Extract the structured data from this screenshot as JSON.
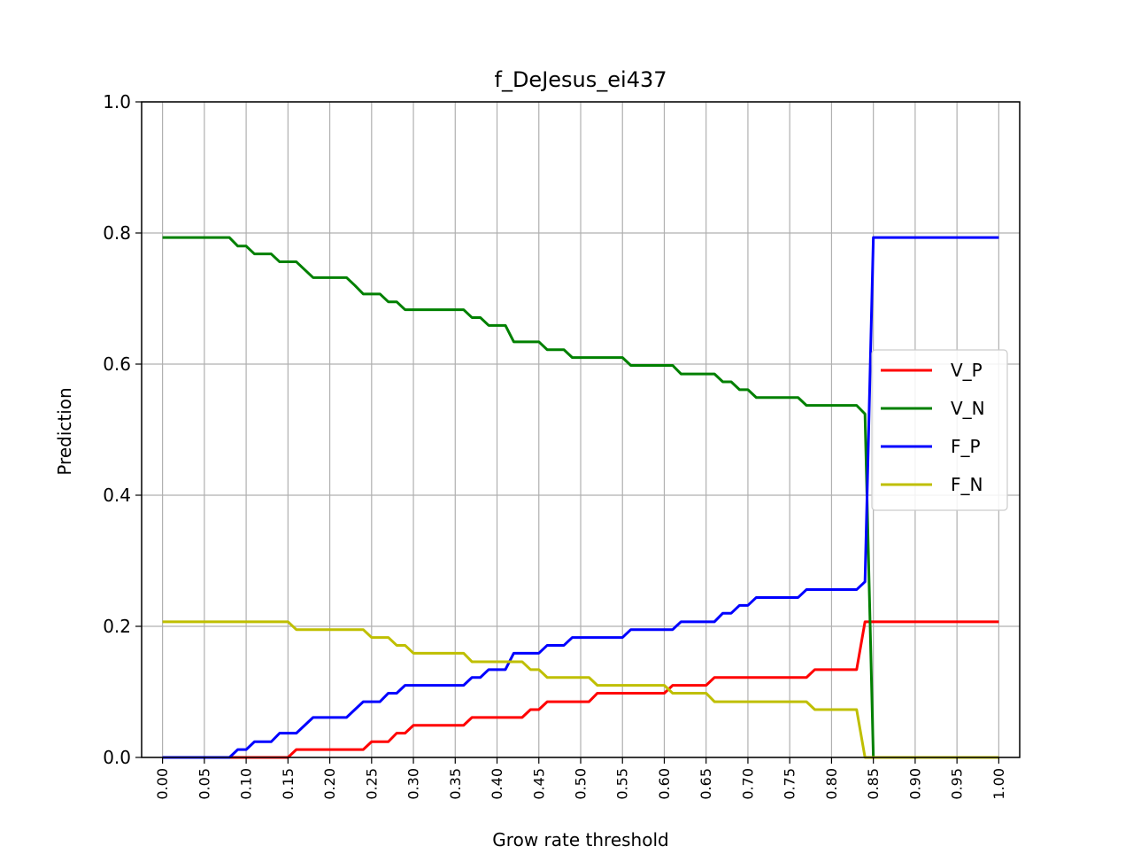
{
  "chart_data": {
    "type": "line",
    "title": "f_DeJesus_ei437",
    "xlabel": "Grow rate threshold",
    "ylabel": "Prediction",
    "xlim": [
      -0.025,
      1.025
    ],
    "ylim": [
      0.0,
      1.0
    ],
    "grid": true,
    "legend_position": "center-right",
    "x_ticks": [
      "0.00",
      "0.05",
      "0.10",
      "0.15",
      "0.20",
      "0.25",
      "0.30",
      "0.35",
      "0.40",
      "0.45",
      "0.50",
      "0.55",
      "0.60",
      "0.65",
      "0.70",
      "0.75",
      "0.80",
      "0.85",
      "0.90",
      "0.95",
      "1.00"
    ],
    "y_ticks": [
      "0.0",
      "0.2",
      "0.4",
      "0.6",
      "0.8",
      "1.0"
    ],
    "x": [
      0.0,
      0.01,
      0.02,
      0.03,
      0.04,
      0.05,
      0.06,
      0.07,
      0.08,
      0.09,
      0.1,
      0.11,
      0.12,
      0.13,
      0.14,
      0.15,
      0.16,
      0.17,
      0.18,
      0.19,
      0.2,
      0.21,
      0.22,
      0.23,
      0.24,
      0.25,
      0.26,
      0.27,
      0.28,
      0.29,
      0.3,
      0.31,
      0.32,
      0.33,
      0.34,
      0.35,
      0.36,
      0.37,
      0.38,
      0.39,
      0.4,
      0.41,
      0.42,
      0.43,
      0.44,
      0.45,
      0.46,
      0.47,
      0.48,
      0.49,
      0.5,
      0.51,
      0.52,
      0.53,
      0.54,
      0.55,
      0.56,
      0.57,
      0.58,
      0.59,
      0.6,
      0.61,
      0.62,
      0.63,
      0.64,
      0.65,
      0.66,
      0.67,
      0.68,
      0.69,
      0.7,
      0.71,
      0.72,
      0.73,
      0.74,
      0.75,
      0.76,
      0.77,
      0.78,
      0.79,
      0.8,
      0.81,
      0.82,
      0.83,
      0.84,
      0.85,
      0.86,
      0.87,
      0.88,
      0.89,
      0.9,
      0.91,
      0.92,
      0.93,
      0.94,
      0.95,
      0.96,
      0.97,
      0.98,
      0.99,
      1.0
    ],
    "series": [
      {
        "name": "V_P",
        "color": "#ff0000",
        "values": [
          0,
          0,
          0,
          0,
          0,
          0,
          0,
          0,
          0,
          0,
          0,
          0,
          0,
          0,
          0,
          0,
          0.012,
          0.012,
          0.012,
          0.012,
          0.012,
          0.012,
          0.012,
          0.012,
          0.012,
          0.024,
          0.024,
          0.024,
          0.037,
          0.037,
          0.049,
          0.049,
          0.049,
          0.049,
          0.049,
          0.049,
          0.049,
          0.061,
          0.061,
          0.061,
          0.061,
          0.061,
          0.061,
          0.061,
          0.073,
          0.073,
          0.085,
          0.085,
          0.085,
          0.085,
          0.085,
          0.085,
          0.098,
          0.098,
          0.098,
          0.098,
          0.098,
          0.098,
          0.098,
          0.098,
          0.098,
          0.11,
          0.11,
          0.11,
          0.11,
          0.11,
          0.122,
          0.122,
          0.122,
          0.122,
          0.122,
          0.122,
          0.122,
          0.122,
          0.122,
          0.122,
          0.122,
          0.122,
          0.134,
          0.134,
          0.134,
          0.134,
          0.134,
          0.134,
          0.207,
          0.207,
          0.207,
          0.207,
          0.207,
          0.207,
          0.207,
          0.207,
          0.207,
          0.207,
          0.207,
          0.207,
          0.207,
          0.207,
          0.207,
          0.207,
          0.207
        ]
      },
      {
        "name": "V_N",
        "color": "#008000",
        "values": [
          0.793,
          0.793,
          0.793,
          0.793,
          0.793,
          0.793,
          0.793,
          0.793,
          0.793,
          0.78,
          0.78,
          0.768,
          0.768,
          0.768,
          0.756,
          0.756,
          0.756,
          0.744,
          0.732,
          0.732,
          0.732,
          0.732,
          0.732,
          0.72,
          0.707,
          0.707,
          0.707,
          0.695,
          0.695,
          0.683,
          0.683,
          0.683,
          0.683,
          0.683,
          0.683,
          0.683,
          0.683,
          0.671,
          0.671,
          0.659,
          0.659,
          0.659,
          0.634,
          0.634,
          0.634,
          0.634,
          0.622,
          0.622,
          0.622,
          0.61,
          0.61,
          0.61,
          0.61,
          0.61,
          0.61,
          0.61,
          0.598,
          0.598,
          0.598,
          0.598,
          0.598,
          0.598,
          0.585,
          0.585,
          0.585,
          0.585,
          0.585,
          0.573,
          0.573,
          0.561,
          0.561,
          0.549,
          0.549,
          0.549,
          0.549,
          0.549,
          0.549,
          0.537,
          0.537,
          0.537,
          0.537,
          0.537,
          0.537,
          0.537,
          0.524,
          0,
          0,
          0,
          0,
          0,
          0,
          0,
          0,
          0,
          0,
          0,
          0,
          0,
          0,
          0,
          0
        ]
      },
      {
        "name": "F_P",
        "color": "#0000ff",
        "values": [
          0,
          0,
          0,
          0,
          0,
          0,
          0,
          0,
          0,
          0.012,
          0.012,
          0.024,
          0.024,
          0.024,
          0.037,
          0.037,
          0.037,
          0.049,
          0.061,
          0.061,
          0.061,
          0.061,
          0.061,
          0.073,
          0.085,
          0.085,
          0.085,
          0.098,
          0.098,
          0.11,
          0.11,
          0.11,
          0.11,
          0.11,
          0.11,
          0.11,
          0.11,
          0.122,
          0.122,
          0.134,
          0.134,
          0.134,
          0.159,
          0.159,
          0.159,
          0.159,
          0.171,
          0.171,
          0.171,
          0.183,
          0.183,
          0.183,
          0.183,
          0.183,
          0.183,
          0.183,
          0.195,
          0.195,
          0.195,
          0.195,
          0.195,
          0.195,
          0.207,
          0.207,
          0.207,
          0.207,
          0.207,
          0.22,
          0.22,
          0.232,
          0.232,
          0.244,
          0.244,
          0.244,
          0.244,
          0.244,
          0.244,
          0.256,
          0.256,
          0.256,
          0.256,
          0.256,
          0.256,
          0.256,
          0.268,
          0.793,
          0.793,
          0.793,
          0.793,
          0.793,
          0.793,
          0.793,
          0.793,
          0.793,
          0.793,
          0.793,
          0.793,
          0.793,
          0.793,
          0.793,
          0.793
        ]
      },
      {
        "name": "F_N",
        "color": "#bfbf00",
        "values": [
          0.207,
          0.207,
          0.207,
          0.207,
          0.207,
          0.207,
          0.207,
          0.207,
          0.207,
          0.207,
          0.207,
          0.207,
          0.207,
          0.207,
          0.207,
          0.207,
          0.195,
          0.195,
          0.195,
          0.195,
          0.195,
          0.195,
          0.195,
          0.195,
          0.195,
          0.183,
          0.183,
          0.183,
          0.171,
          0.171,
          0.159,
          0.159,
          0.159,
          0.159,
          0.159,
          0.159,
          0.159,
          0.146,
          0.146,
          0.146,
          0.146,
          0.146,
          0.146,
          0.146,
          0.134,
          0.134,
          0.122,
          0.122,
          0.122,
          0.122,
          0.122,
          0.122,
          0.11,
          0.11,
          0.11,
          0.11,
          0.11,
          0.11,
          0.11,
          0.11,
          0.11,
          0.098,
          0.098,
          0.098,
          0.098,
          0.098,
          0.085,
          0.085,
          0.085,
          0.085,
          0.085,
          0.085,
          0.085,
          0.085,
          0.085,
          0.085,
          0.085,
          0.085,
          0.073,
          0.073,
          0.073,
          0.073,
          0.073,
          0.073,
          0,
          0,
          0,
          0,
          0,
          0,
          0,
          0,
          0,
          0,
          0,
          0,
          0,
          0,
          0,
          0,
          0
        ]
      }
    ]
  }
}
